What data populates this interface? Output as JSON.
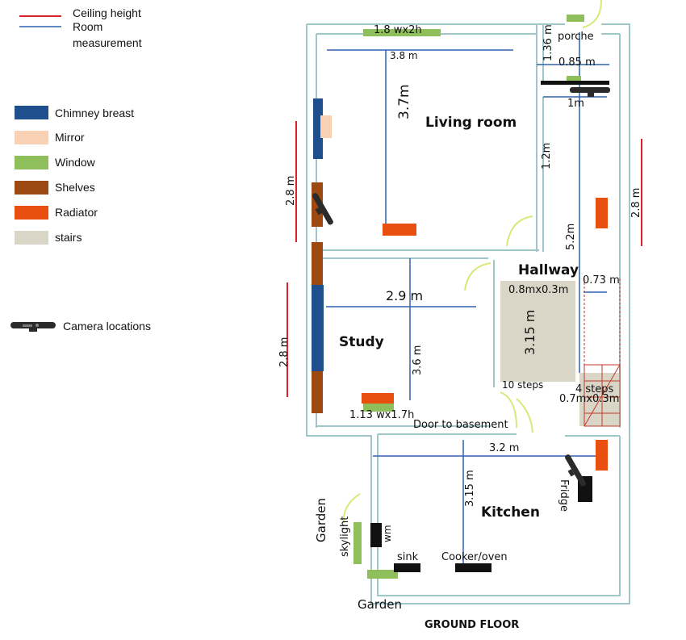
{
  "legend": {
    "ceiling_height": "Ceiling height",
    "room_measurement": "Room",
    "room_measurement_2": "measurement",
    "chimney": "Chimney breast",
    "mirror": "Mirror",
    "window": "Window",
    "shelves": "Shelves",
    "radiator": "Radiator",
    "stairs": "stairs",
    "camera": "Camera locations"
  },
  "colors": {
    "ceiling": "#d9222a",
    "measure": "#2f62b0",
    "chimney": "#1f4f8c",
    "mirror": "#f9d2b5",
    "window": "#8fbf5a",
    "shelves": "#9c4a12",
    "radiator": "#e9500f",
    "stairs": "#dad6c7",
    "wall": "#9fc6c8"
  },
  "rooms": {
    "living": "Living room",
    "hallway": "Hallway",
    "study": "Study",
    "kitchen": "Kitchen"
  },
  "dims": {
    "living_window": "1.8 wx2h",
    "living_width": "3.8 m",
    "living_depth": "3.7m",
    "porch_depth": "1.36 m",
    "porch": "porche",
    "porch_width": "0.85 m",
    "porch_1m": "1m",
    "hall_1_2": "1.2m",
    "hall_5_2": "5.2m",
    "ceiling_left_top": "2.8 m",
    "ceiling_right": "2.8 m",
    "ceiling_left_bottom": "2.8 m",
    "study_width": "2.9 m",
    "study_depth": "3.6 m",
    "stairs_size": "0.8mx0.3m",
    "stairs_len": "3.15 m",
    "hall_073": "0.73 m",
    "steps_10": "10 steps",
    "steps_4": "4 steps",
    "stairs_small": "0.7mx0.3m",
    "study_window": "1.13 wx1.7h",
    "door_basement": "Door to basement",
    "kitchen_width": "3.2 m",
    "kitchen_depth": "3.15 m",
    "fridge": "Fridge",
    "garden_top": "Garden",
    "skylight": "skylight",
    "wm": "wm",
    "sink": "sink",
    "cooker": "Cooker/oven",
    "garden_bottom": "Garden",
    "floor": "GROUND FLOOR"
  }
}
